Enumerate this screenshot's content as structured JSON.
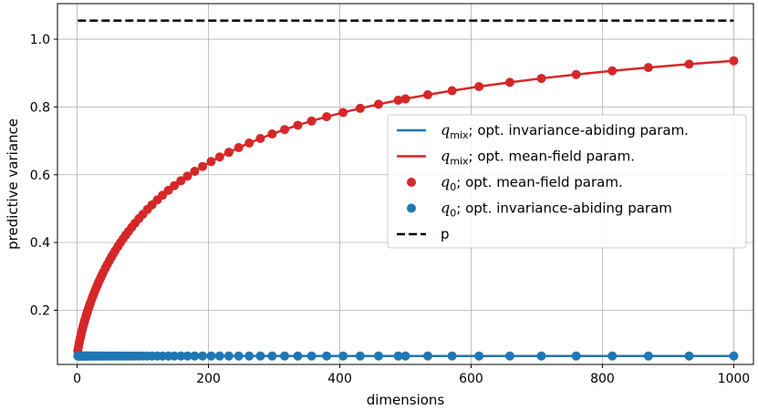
{
  "chart_data": {
    "type": "line",
    "title": "",
    "xlabel": "dimensions",
    "ylabel": "predictive variance",
    "xlim": [
      -30,
      1030
    ],
    "ylim": [
      0.04,
      1.105
    ],
    "grid": true,
    "legend_position": "center-right",
    "x_ticks": [
      0,
      200,
      400,
      600,
      800,
      1000
    ],
    "y_ticks": [
      0.2,
      0.4,
      0.6,
      0.8,
      1.0
    ],
    "x_tick_labels": [
      "0",
      "200",
      "400",
      "600",
      "800",
      "1000"
    ],
    "y_tick_labels": [
      "0.2",
      "0.4",
      "0.6",
      "0.8",
      "1.0"
    ],
    "x": [
      1,
      2,
      3,
      4,
      5,
      6,
      7,
      8,
      9,
      10,
      11,
      12,
      13,
      14,
      15,
      16,
      17,
      18,
      19,
      20,
      22,
      24,
      26,
      28,
      30,
      32,
      34,
      36,
      38,
      40,
      43,
      46,
      49,
      52,
      55,
      58,
      62,
      66,
      70,
      74,
      78,
      83,
      88,
      94,
      100,
      107,
      114,
      122,
      130,
      139,
      148,
      158,
      168,
      179,
      191,
      204,
      217,
      231,
      246,
      262,
      279,
      297,
      316,
      336,
      357,
      380,
      405,
      431,
      459,
      489,
      500,
      534,
      571,
      612,
      659,
      707,
      760,
      815,
      870,
      932,
      1000
    ],
    "series": [
      {
        "name": "q_mix; opt. invariance-abiding param.",
        "name_main": "q",
        "name_sub": "mix",
        "name_rest": "; opt. invariance-abiding param.",
        "color": "#1f77b4",
        "style": "line",
        "values_rule": "constant",
        "constant": 0.065
      },
      {
        "name": "q_mix; opt. mean-field param.",
        "name_main": "q",
        "name_sub": "mix",
        "name_rest": "; opt. mean-field param.",
        "color": "#d62728",
        "style": "line",
        "values_rule": "curve"
      },
      {
        "name": "q_0; opt. mean-field param.",
        "name_main": "q",
        "name_sub": "0",
        "name_rest": "; opt. mean-field param.",
        "color": "#d62728",
        "style": "markers",
        "values_rule": "curve"
      },
      {
        "name": "q_0; opt. invariance-abiding param",
        "name_main": "q",
        "name_sub": "0",
        "name_rest": "; opt. invariance-abiding param",
        "color": "#1f77b4",
        "style": "markers",
        "values_rule": "constant",
        "constant": 0.065
      },
      {
        "name": "p",
        "name_main": "",
        "name_sub": "",
        "name_rest": "p",
        "color": "#000000",
        "style": "dashed",
        "values_rule": "constant",
        "constant": 1.055
      }
    ],
    "curve_values": {
      "comment": "predictive variance of mean-field fit vs dimensions",
      "y0": 0.065,
      "y_at_1000": 0.912,
      "y_at_100": 0.435,
      "y_at_200": 0.6,
      "y_at_400": 0.76,
      "y_at_600": 0.84,
      "y_at_800": 0.883
    }
  }
}
